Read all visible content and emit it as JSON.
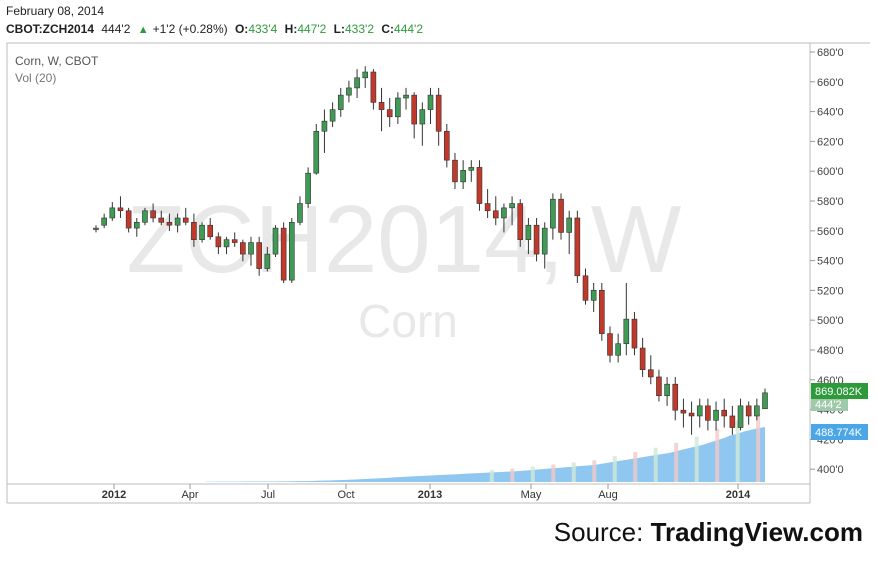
{
  "header": {
    "date": "February 08, 2014",
    "symbol": "CBOT:ZCH2014",
    "last": "444'2",
    "change": "+1'2 (+0.28%)",
    "open_label": "O:",
    "open": "433'4",
    "high_label": "H:",
    "high": "447'2",
    "low_label": "L:",
    "low": "433'2",
    "close_label": "C:",
    "close": "444'2"
  },
  "legend": {
    "title": "Corn, W, CBOT",
    "volume": "Vol (20)"
  },
  "watermark": {
    "symbol": "ZCH2014, W",
    "name": "Corn"
  },
  "footer": {
    "prefix": "Source: ",
    "brand": "TradingView.com"
  },
  "colors": {
    "up": "#3f9a56",
    "down": "#c0392b",
    "volume": "#6ab4ec",
    "last_price_tag": "#4aa564"
  },
  "chart_data": {
    "type": "candlestick",
    "y_ticks": [
      "680'0",
      "660'0",
      "640'0",
      "620'0",
      "600'0",
      "580'0",
      "560'0",
      "540'0",
      "520'0",
      "500'0",
      "480'0",
      "460'0",
      "440'0",
      "420'0",
      "400'0"
    ],
    "y_values": [
      680,
      660,
      640,
      620,
      600,
      580,
      560,
      540,
      520,
      500,
      480,
      460,
      440,
      420,
      400
    ],
    "ylim": [
      392,
      684
    ],
    "x_ticks": [
      "2012",
      "Apr",
      "Jul",
      "Oct",
      "2013",
      "May",
      "Aug",
      "2014"
    ],
    "price_tag": "444'2",
    "volume_tag": "869.082K",
    "volume_avg_tag": "488.774K",
    "candles": [
      [
        557,
        560,
        555,
        558
      ],
      [
        560,
        568,
        558,
        565
      ],
      [
        565,
        576,
        563,
        572
      ],
      [
        572,
        580,
        565,
        570
      ],
      [
        570,
        572,
        555,
        558
      ],
      [
        558,
        565,
        552,
        562
      ],
      [
        562,
        572,
        560,
        570
      ],
      [
        570,
        575,
        562,
        565
      ],
      [
        565,
        570,
        560,
        562
      ],
      [
        562,
        568,
        556,
        560
      ],
      [
        560,
        568,
        555,
        565
      ],
      [
        565,
        572,
        560,
        562
      ],
      [
        562,
        568,
        545,
        550
      ],
      [
        550,
        562,
        548,
        560
      ],
      [
        560,
        565,
        550,
        552
      ],
      [
        552,
        555,
        540,
        545
      ],
      [
        545,
        552,
        540,
        550
      ],
      [
        550,
        555,
        545,
        548
      ],
      [
        548,
        550,
        535,
        540
      ],
      [
        540,
        552,
        532,
        548
      ],
      [
        548,
        552,
        525,
        530
      ],
      [
        530,
        545,
        528,
        540
      ],
      [
        540,
        560,
        538,
        558
      ],
      [
        558,
        562,
        520,
        522
      ],
      [
        522,
        565,
        520,
        562
      ],
      [
        562,
        580,
        560,
        575
      ],
      [
        575,
        600,
        572,
        596
      ],
      [
        596,
        630,
        595,
        625
      ],
      [
        625,
        640,
        610,
        632
      ],
      [
        632,
        645,
        628,
        640
      ],
      [
        640,
        655,
        635,
        650
      ],
      [
        650,
        660,
        645,
        655
      ],
      [
        655,
        668,
        648,
        662
      ],
      [
        662,
        670,
        655,
        666
      ],
      [
        666,
        668,
        640,
        645
      ],
      [
        645,
        655,
        625,
        640
      ],
      [
        640,
        648,
        628,
        635
      ],
      [
        635,
        652,
        630,
        648
      ],
      [
        648,
        655,
        640,
        650
      ],
      [
        650,
        652,
        620,
        630
      ],
      [
        630,
        645,
        615,
        640
      ],
      [
        640,
        655,
        630,
        650
      ],
      [
        650,
        655,
        615,
        625
      ],
      [
        625,
        630,
        600,
        605
      ],
      [
        605,
        610,
        585,
        590
      ],
      [
        590,
        605,
        585,
        598
      ],
      [
        598,
        605,
        590,
        600
      ],
      [
        600,
        605,
        570,
        575
      ],
      [
        575,
        585,
        565,
        570
      ],
      [
        570,
        580,
        560,
        565
      ],
      [
        565,
        575,
        555,
        572
      ],
      [
        572,
        580,
        560,
        575
      ],
      [
        575,
        578,
        545,
        550
      ],
      [
        550,
        565,
        540,
        560
      ],
      [
        560,
        565,
        535,
        540
      ],
      [
        540,
        562,
        530,
        558
      ],
      [
        558,
        582,
        550,
        578
      ],
      [
        578,
        582,
        550,
        555
      ],
      [
        555,
        570,
        540,
        565
      ],
      [
        565,
        570,
        520,
        525
      ],
      [
        525,
        530,
        505,
        508
      ],
      [
        508,
        520,
        500,
        515
      ],
      [
        515,
        520,
        480,
        485
      ],
      [
        485,
        490,
        465,
        470
      ],
      [
        470,
        485,
        465,
        478
      ],
      [
        478,
        520,
        470,
        495
      ],
      [
        495,
        500,
        470,
        475
      ],
      [
        475,
        482,
        455,
        460
      ],
      [
        460,
        470,
        450,
        455
      ],
      [
        455,
        460,
        438,
        442
      ],
      [
        442,
        455,
        435,
        450
      ],
      [
        450,
        455,
        425,
        432
      ],
      [
        432,
        440,
        420,
        430
      ],
      [
        430,
        438,
        415,
        428
      ],
      [
        428,
        440,
        420,
        435
      ],
      [
        435,
        440,
        418,
        425
      ],
      [
        425,
        438,
        418,
        432
      ],
      [
        432,
        440,
        420,
        428
      ],
      [
        428,
        435,
        415,
        420
      ],
      [
        420,
        440,
        418,
        435
      ],
      [
        435,
        438,
        422,
        428
      ],
      [
        428,
        440,
        425,
        435
      ],
      [
        433,
        447,
        433,
        444
      ]
    ],
    "volume_bars": [
      0.5,
      0.5,
      0.6,
      0.6,
      0.7,
      0.7,
      0.8,
      0.8,
      0.9,
      1,
      1,
      1.1,
      1.2,
      1.3,
      1.5,
      1.7,
      2,
      2.4,
      2.8,
      3.2,
      3.6,
      4,
      4.6,
      5.2,
      5.8,
      6.4,
      7,
      7.8,
      8.6,
      9.4,
      10,
      10.6,
      11.2,
      11.8,
      12.4,
      13,
      13.6,
      14.2,
      15,
      15.6,
      16.2,
      16.8,
      17.4,
      18,
      18.6,
      19.2,
      20,
      21,
      22,
      23,
      24,
      25,
      26,
      27,
      28,
      29,
      30,
      31,
      33,
      35,
      37,
      39,
      41,
      43,
      45,
      47,
      49,
      51,
      53,
      56,
      59,
      62,
      65,
      68,
      72,
      76,
      80,
      85,
      88,
      92,
      95,
      98,
      100
    ]
  }
}
